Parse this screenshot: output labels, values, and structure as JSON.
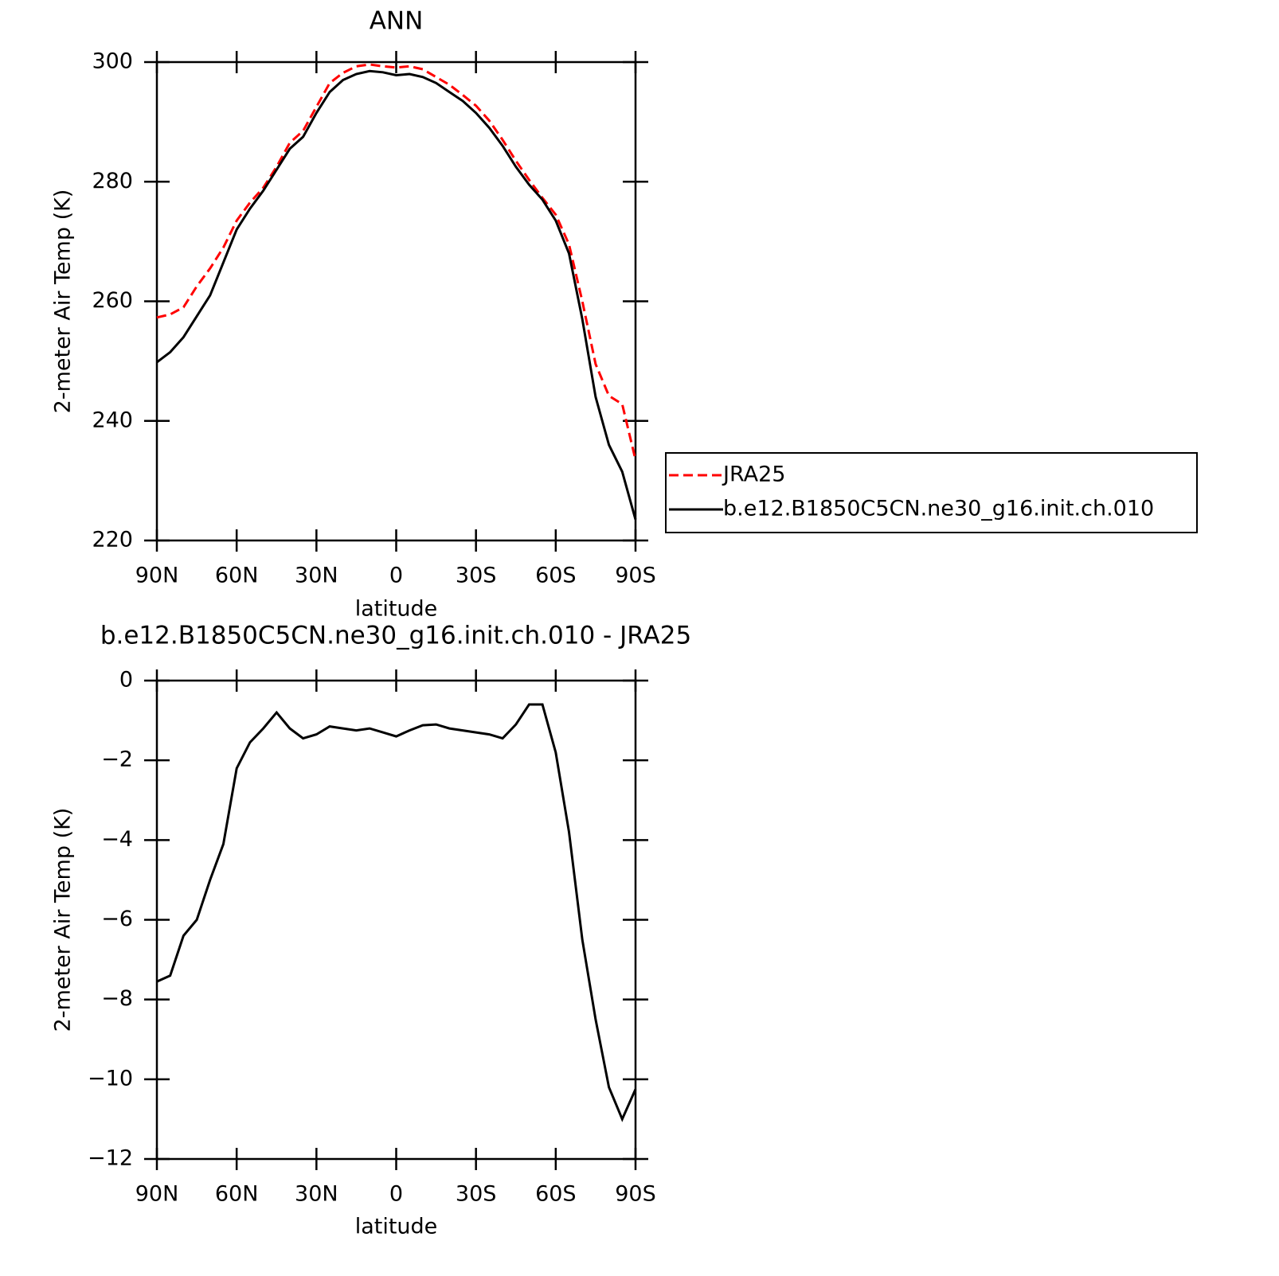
{
  "chart_data": [
    {
      "type": "line",
      "title": "ANN",
      "x_label": "latitude",
      "y_label": "2-meter Air Temp (K)",
      "x": [
        90,
        85,
        80,
        75,
        70,
        65,
        60,
        55,
        50,
        45,
        40,
        35,
        30,
        25,
        20,
        15,
        10,
        5,
        0,
        -5,
        -10,
        -15,
        -20,
        -25,
        -30,
        -35,
        -40,
        -45,
        -50,
        -55,
        -60,
        -65,
        -70,
        -75,
        -80,
        -85,
        -90
      ],
      "xlim": [
        90,
        -90
      ],
      "xticks": [
        {
          "value": 90,
          "label": "90N"
        },
        {
          "value": 60,
          "label": "60N"
        },
        {
          "value": 30,
          "label": "30N"
        },
        0,
        {
          "value": -30,
          "label": "30S"
        },
        {
          "value": -60,
          "label": "60S"
        },
        {
          "value": -90,
          "label": "90S"
        }
      ],
      "ylim": [
        220,
        300
      ],
      "yticks": [
        220,
        240,
        260,
        280,
        300
      ],
      "legend": "right",
      "series": [
        {
          "name": "JRA25",
          "color": "#ff0000",
          "line_style": "dashed",
          "values": [
            257.3,
            257.8,
            259,
            262.5,
            265.5,
            269,
            273.5,
            276.5,
            279,
            282.5,
            286.5,
            288.5,
            292.5,
            296.5,
            298.2,
            299.3,
            299.6,
            299.3,
            299.1,
            299.3,
            298.8,
            297.5,
            296.2,
            294.5,
            292.7,
            290.2,
            287,
            283.5,
            280.3,
            277.3,
            274.5,
            269.5,
            260,
            249.5,
            244.2,
            242.8,
            233.5
          ]
        },
        {
          "name": "b.e12.B1850C5CN.ne30_g16.init.ch.010",
          "color": "#000000",
          "line_style": "solid",
          "values": [
            249.8,
            251.5,
            254,
            257.5,
            261,
            266.5,
            272,
            275.5,
            278.5,
            282,
            285.5,
            287.5,
            291.5,
            295,
            297,
            298,
            298.5,
            298.3,
            297.8,
            298,
            297.5,
            296.5,
            295,
            293.5,
            291.5,
            289,
            286,
            282.5,
            279.5,
            277,
            273.5,
            268,
            257,
            244,
            236,
            231.5,
            223.5
          ]
        }
      ]
    },
    {
      "type": "line",
      "title": "b.e12.B1850C5CN.ne30_g16.init.ch.010 - JRA25",
      "x_label": "latitude",
      "y_label": "2-meter Air Temp (K)",
      "x": [
        90,
        85,
        80,
        75,
        70,
        65,
        60,
        55,
        50,
        45,
        40,
        35,
        30,
        25,
        20,
        15,
        10,
        5,
        0,
        -5,
        -10,
        -15,
        -20,
        -25,
        -30,
        -35,
        -40,
        -45,
        -50,
        -55,
        -60,
        -65,
        -70,
        -75,
        -80,
        -85,
        -90
      ],
      "xlim": [
        90,
        -90
      ],
      "xticks": [
        {
          "value": 90,
          "label": "90N"
        },
        {
          "value": 60,
          "label": "60N"
        },
        {
          "value": 30,
          "label": "30N"
        },
        0,
        {
          "value": -30,
          "label": "30S"
        },
        {
          "value": -60,
          "label": "60S"
        },
        {
          "value": -90,
          "label": "90S"
        }
      ],
      "ylim": [
        -12,
        0
      ],
      "yticks": [
        {
          "value": -12,
          "label": "−12"
        },
        {
          "value": -10,
          "label": "−10"
        },
        {
          "value": -8,
          "label": "−8"
        },
        {
          "value": -6,
          "label": "−6"
        },
        {
          "value": -4,
          "label": "−4"
        },
        {
          "value": -2,
          "label": "−2"
        },
        0
      ],
      "series": [
        {
          "color": "#000000",
          "line_style": "solid",
          "values": [
            -7.55,
            -7.4,
            -6.4,
            -6.0,
            -5.0,
            -4.1,
            -2.2,
            -1.55,
            -1.2,
            -0.8,
            -1.2,
            -1.45,
            -1.35,
            -1.15,
            -1.2,
            -1.25,
            -1.2,
            -1.3,
            -1.4,
            -1.25,
            -1.12,
            -1.1,
            -1.2,
            -1.25,
            -1.3,
            -1.35,
            -1.45,
            -1.1,
            -0.6,
            -0.6,
            -1.8,
            -3.8,
            -6.5,
            -8.5,
            -10.2,
            -11,
            -10.25
          ]
        }
      ]
    }
  ]
}
